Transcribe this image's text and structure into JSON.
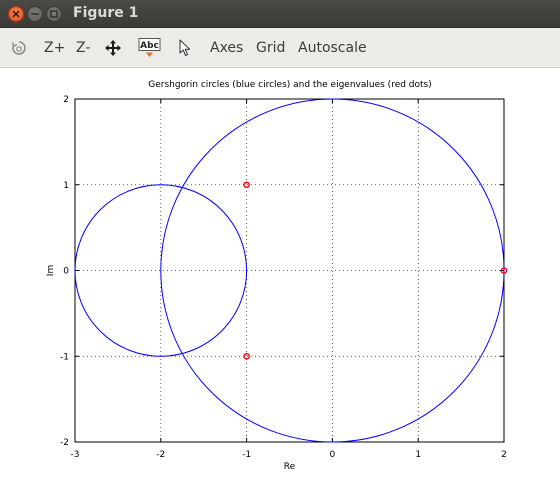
{
  "window": {
    "title": "Figure 1"
  },
  "toolbar": {
    "zoom_in_label": "Z+",
    "zoom_out_label": "Z-",
    "axes_label": "Axes",
    "grid_label": "Grid",
    "autoscale_label": "Autoscale",
    "text_tool_label": "Abc"
  },
  "chart_data": {
    "type": "scatter",
    "title": "Gershgorin circles (blue circles) and the eigenvalues (red dots)",
    "xlabel": "Re",
    "ylabel": "Im",
    "xlim": [
      -3,
      2
    ],
    "ylim": [
      -2,
      2
    ],
    "xticks": [
      -3,
      -2,
      -1,
      0,
      1,
      2
    ],
    "yticks": [
      -2,
      -1,
      0,
      1,
      2
    ],
    "xticklabels": [
      "-3",
      "-2",
      "-1",
      "0",
      "1",
      "2"
    ],
    "yticklabels": [
      "-2",
      "-1",
      "0",
      "1",
      "2"
    ],
    "grid": true,
    "circles": [
      {
        "center_re": -2,
        "center_im": 0,
        "radius": 1,
        "color": "#0000ff"
      },
      {
        "center_re": 0,
        "center_im": 0,
        "radius": 2,
        "color": "#0000ff"
      }
    ],
    "eigenvalues": [
      {
        "re": -1,
        "im": 1
      },
      {
        "re": -1,
        "im": -1
      },
      {
        "re": 2,
        "im": 0
      }
    ],
    "eigen_color": "#ff0000"
  }
}
